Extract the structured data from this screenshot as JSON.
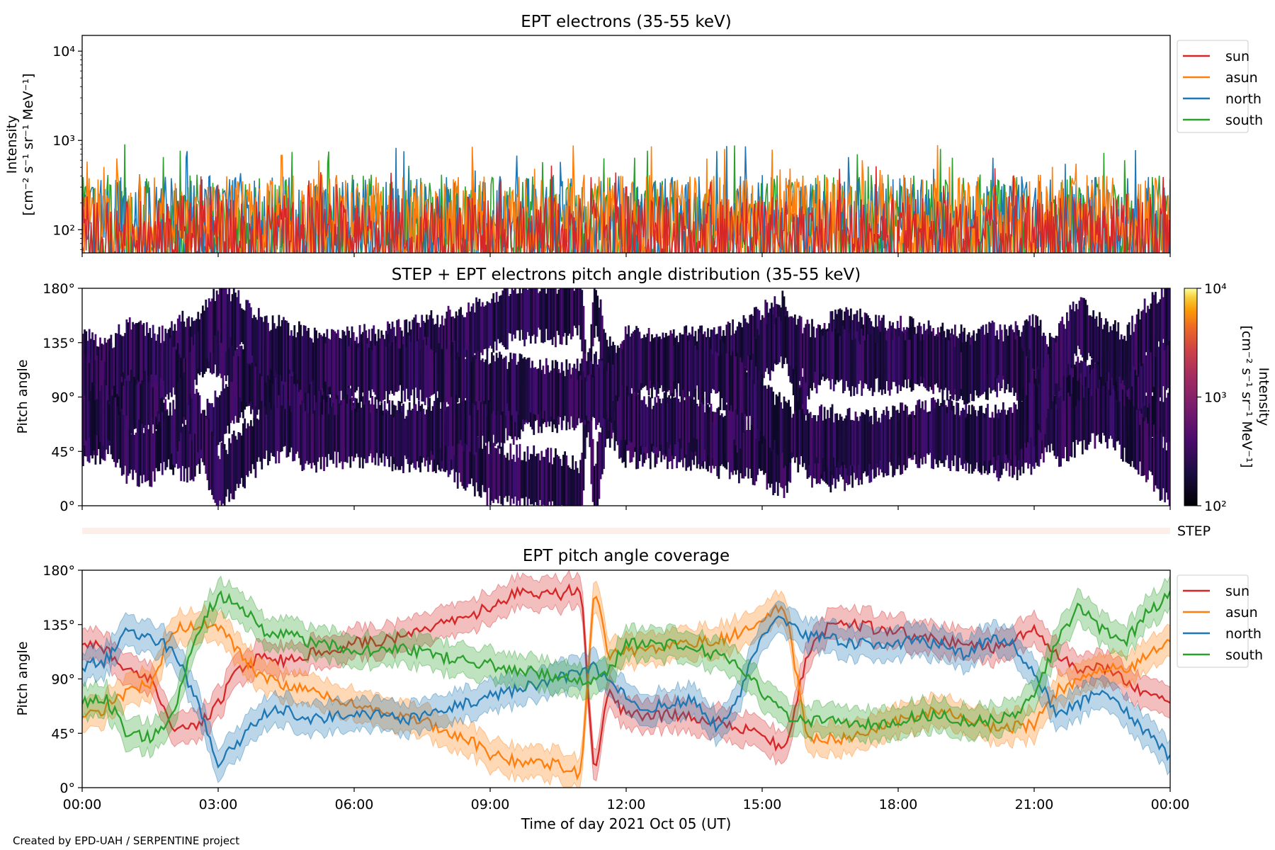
{
  "credit": "Created by EPD-UAH / SERPENTINE project",
  "time_axis": {
    "xlabel": "Time of day 2021 Oct 05 (UT)",
    "tick_labels": [
      "00:00",
      "03:00",
      "06:00",
      "09:00",
      "12:00",
      "15:00",
      "18:00",
      "21:00",
      "00:00"
    ],
    "range_hours": [
      0,
      24
    ]
  },
  "colors": {
    "sun": "#d62728",
    "asun": "#ff7f0e",
    "north": "#1f77b4",
    "south": "#2ca02c"
  },
  "chart_data": [
    {
      "type": "line",
      "title": "EPT electrons (35-55 keV)",
      "ylabel": "Intensity",
      "yunit": "[cm⁻² s⁻¹ sr⁻¹ MeV⁻¹]",
      "yscale": "log",
      "ylim": [
        55,
        15000
      ],
      "yticks": [
        {
          "value": 100,
          "label": "10²"
        },
        {
          "value": 1000,
          "label": "10³"
        },
        {
          "value": 10000,
          "label": "10⁴"
        }
      ],
      "legend": "upper-right-outside",
      "series": [
        {
          "name": "south",
          "color": "#2ca02c",
          "base": 120,
          "spread": 0.75,
          "spikes": [
            [
              1.8,
              650
            ],
            [
              7.2,
              520
            ],
            [
              17.1,
              700
            ],
            [
              23.0,
              600
            ]
          ]
        },
        {
          "name": "north",
          "color": "#1f77b4",
          "base": 115,
          "spread": 0.75,
          "spikes": [
            [
              2.3,
              640
            ],
            [
              14.0,
              760
            ],
            [
              16.9,
              650
            ],
            [
              20.1,
              640
            ]
          ]
        },
        {
          "name": "asun",
          "color": "#ff7f0e",
          "base": 130,
          "spread": 0.7,
          "spikes": [
            [
              4.4,
              680
            ],
            [
              8.6,
              850
            ],
            [
              0.1,
              580
            ],
            [
              17.2,
              600
            ]
          ]
        },
        {
          "name": "sun",
          "color": "#d62728",
          "base": 90,
          "spread": 0.6,
          "spikes": [
            [
              3.0,
              320
            ],
            [
              12.0,
              300
            ],
            [
              19.0,
              310
            ]
          ]
        }
      ],
      "legend_order": [
        "sun",
        "asun",
        "north",
        "south"
      ]
    },
    {
      "type": "heatmap",
      "title": "STEP + EPT electrons pitch angle distribution (35-55 keV)",
      "ylabel": "Pitch angle",
      "ylim": [
        0,
        180
      ],
      "yticks": [
        "0°",
        "45°",
        "90°",
        "135°",
        "180°"
      ],
      "colorbar": {
        "label": "Intensity",
        "unit": "[cm⁻² s⁻¹ sr⁻¹ MeV⁻¹]",
        "scale": "log",
        "range": [
          100,
          10000
        ],
        "tick_labels": [
          "10²",
          "10³",
          "10⁴"
        ],
        "colormap": "inferno"
      },
      "step_label": "STEP"
    },
    {
      "type": "line",
      "title": "EPT pitch angle coverage",
      "ylabel": "Pitch angle",
      "ylim": [
        0,
        180
      ],
      "yticks": [
        "0°",
        "45°",
        "90°",
        "135°",
        "180°"
      ],
      "legend": "upper-right-outside",
      "band_halfwidth_deg": 13,
      "hours": [
        0,
        0.5,
        1,
        1.5,
        2,
        2.5,
        3,
        3.5,
        4,
        4.5,
        5,
        5.5,
        6,
        6.5,
        7,
        7.5,
        8,
        8.5,
        9,
        9.5,
        10,
        10.5,
        11,
        11.3,
        11.6,
        12,
        12.5,
        13,
        13.5,
        14,
        14.5,
        15,
        15.5,
        16,
        16.5,
        17,
        17.5,
        18,
        18.5,
        19,
        19.5,
        20,
        20.5,
        21,
        21.5,
        22,
        22.5,
        23,
        23.5,
        24
      ],
      "series": [
        {
          "name": "sun",
          "color": "#d62728",
          "values": [
            120,
            115,
            95,
            90,
            50,
            48,
            70,
            100,
            110,
            105,
            110,
            115,
            120,
            122,
            125,
            130,
            135,
            140,
            150,
            160,
            162,
            160,
            165,
            10,
            80,
            60,
            60,
            60,
            58,
            55,
            48,
            45,
            30,
            110,
            135,
            135,
            132,
            130,
            125,
            122,
            120,
            115,
            122,
            130,
            110,
            95,
            100,
            90,
            75,
            70
          ]
        },
        {
          "name": "asun",
          "color": "#ff7f0e",
          "values": [
            60,
            65,
            80,
            85,
            130,
            135,
            135,
            110,
            90,
            85,
            80,
            75,
            68,
            62,
            58,
            55,
            48,
            40,
            28,
            22,
            22,
            18,
            10,
            170,
            110,
            112,
            115,
            118,
            120,
            122,
            128,
            140,
            150,
            40,
            40,
            42,
            48,
            55,
            60,
            65,
            58,
            50,
            50,
            52,
            80,
            90,
            100,
            95,
            110,
            120
          ]
        },
        {
          "name": "north",
          "color": "#1f77b4",
          "values": [
            100,
            105,
            130,
            125,
            115,
            75,
            20,
            40,
            60,
            65,
            55,
            60,
            60,
            62,
            55,
            60,
            65,
            70,
            75,
            80,
            85,
            90,
            95,
            100,
            90,
            75,
            65,
            70,
            72,
            50,
            75,
            130,
            140,
            125,
            125,
            118,
            120,
            120,
            122,
            118,
            110,
            125,
            120,
            95,
            60,
            70,
            80,
            65,
            45,
            25
          ]
        },
        {
          "name": "south",
          "color": "#2ca02c",
          "values": [
            70,
            75,
            45,
            42,
            60,
            125,
            160,
            150,
            130,
            128,
            120,
            118,
            115,
            112,
            115,
            112,
            108,
            105,
            102,
            98,
            95,
            92,
            88,
            90,
            95,
            120,
            120,
            118,
            115,
            110,
            100,
            80,
            60,
            55,
            55,
            52,
            52,
            55,
            60,
            60,
            55,
            55,
            60,
            75,
            120,
            150,
            130,
            120,
            145,
            160
          ]
        }
      ],
      "legend_order": [
        "sun",
        "asun",
        "north",
        "south"
      ]
    }
  ]
}
